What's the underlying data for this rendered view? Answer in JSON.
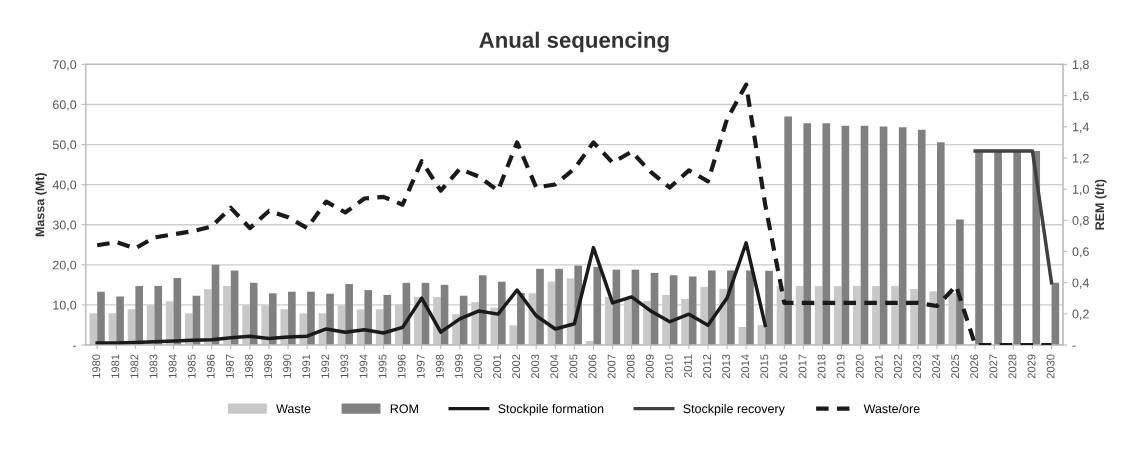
{
  "chart_data": {
    "type": "bar",
    "title": "Anual sequencing",
    "ylabel": "Massa (Mt)",
    "y2label": "REM (t/t)",
    "categories": [
      "1980",
      "1981",
      "1982",
      "1983",
      "1984",
      "1985",
      "1986",
      "1987",
      "1988",
      "1989",
      "1990",
      "1991",
      "1992",
      "1993",
      "1994",
      "1995",
      "1996",
      "1997",
      "1998",
      "1999",
      "2000",
      "2001",
      "2002",
      "2003",
      "2004",
      "2005",
      "2006",
      "2007",
      "2008",
      "2009",
      "2010",
      "2011",
      "2012",
      "2013",
      "2014",
      "2015",
      "2016",
      "2017",
      "2018",
      "2019",
      "2020",
      "2021",
      "2022",
      "2023",
      "2024",
      "2025",
      "2026",
      "2027",
      "2028",
      "2029",
      "2030"
    ],
    "series": [
      {
        "name": "Waste",
        "color": "#c8c8c8",
        "values": [
          7.9,
          7.9,
          8.9,
          9.9,
          10.9,
          7.9,
          13.9,
          14.7,
          9.9,
          9.9,
          8.9,
          7.9,
          7.9,
          9.9,
          8.9,
          8.9,
          10.1,
          12.0,
          12.0,
          7.7,
          10.7,
          9.3,
          4.9,
          12.9,
          15.8,
          16.6,
          1.0,
          12.0,
          11.5,
          11.0,
          12.5,
          11.5,
          14.5,
          14.0,
          4.5,
          5.0,
          14.7,
          14.7,
          14.7,
          14.7,
          14.7,
          14.7,
          14.7,
          14.0,
          13.4,
          13.0,
          null,
          null,
          null,
          null,
          null
        ]
      },
      {
        "name": "ROM",
        "color": "#808080",
        "values": [
          13.3,
          12.1,
          14.7,
          14.7,
          16.7,
          12.3,
          20.0,
          18.6,
          15.5,
          12.9,
          13.3,
          13.3,
          12.8,
          15.2,
          13.7,
          12.5,
          15.5,
          15.5,
          15.0,
          12.3,
          17.4,
          15.8,
          13.0,
          19.0,
          19.0,
          19.8,
          19.5,
          18.8,
          18.8,
          18.0,
          17.4,
          17.1,
          18.6,
          18.6,
          18.6,
          18.5,
          57.0,
          55.3,
          55.3,
          54.7,
          54.7,
          54.5,
          54.3,
          53.7,
          50.6,
          31.3,
          48.4,
          48.4,
          48.4,
          48.4,
          15.5
        ]
      },
      {
        "name": "Stockpile formation",
        "type": "line",
        "color": "#1a1a1a",
        "line_style": "solid",
        "values": [
          0.5,
          0.5,
          0.6,
          0.8,
          1.0,
          1.2,
          1.3,
          1.8,
          2.2,
          1.6,
          2.0,
          2.2,
          4.0,
          3.2,
          3.8,
          3.0,
          4.4,
          11.7,
          3.2,
          6.5,
          8.5,
          7.7,
          13.7,
          7.3,
          4.0,
          5.3,
          24.3,
          10.5,
          12.0,
          8.5,
          5.8,
          7.7,
          4.9,
          11.7,
          25.5,
          4.9,
          null,
          null,
          null,
          null,
          null,
          null,
          null,
          null,
          null,
          null,
          null,
          null,
          null,
          null,
          null
        ]
      },
      {
        "name": "Stockpile recovery",
        "type": "line",
        "color": "#404040",
        "line_style": "solid",
        "values": [
          null,
          null,
          null,
          null,
          null,
          null,
          null,
          null,
          null,
          null,
          null,
          null,
          null,
          null,
          null,
          null,
          null,
          null,
          null,
          null,
          null,
          null,
          null,
          null,
          null,
          null,
          null,
          null,
          null,
          null,
          null,
          null,
          null,
          null,
          null,
          null,
          null,
          null,
          null,
          null,
          null,
          null,
          null,
          null,
          null,
          null,
          48.4,
          48.4,
          48.4,
          48.4,
          15.5
        ]
      },
      {
        "name": "Waste/ore",
        "type": "line",
        "axis": "y2",
        "color": "#1a1a1a",
        "line_style": "dashed",
        "values": [
          0.64,
          0.66,
          0.62,
          0.69,
          0.71,
          0.73,
          0.76,
          0.88,
          0.75,
          0.86,
          0.82,
          0.75,
          0.92,
          0.85,
          0.94,
          0.95,
          0.9,
          1.18,
          0.99,
          1.13,
          1.08,
          0.99,
          1.3,
          1.01,
          1.03,
          1.13,
          1.3,
          1.17,
          1.24,
          1.11,
          1.01,
          1.12,
          1.05,
          1.45,
          1.67,
          0.9,
          0.27,
          0.27,
          0.27,
          0.27,
          0.27,
          0.27,
          0.27,
          0.27,
          0.25,
          0.38,
          0,
          0,
          0,
          0,
          0
        ]
      }
    ],
    "ylim": [
      0,
      70
    ],
    "yticks": [
      {
        "value": 0,
        "label": "-"
      },
      {
        "value": 10,
        "label": "10,0"
      },
      {
        "value": 20,
        "label": "20,0"
      },
      {
        "value": 30,
        "label": "30,0"
      },
      {
        "value": 40,
        "label": "40,0"
      },
      {
        "value": 50,
        "label": "50,0"
      },
      {
        "value": 60,
        "label": "60,0"
      },
      {
        "value": 70,
        "label": "70,0"
      }
    ],
    "y2lim": [
      0,
      1.8
    ],
    "y2ticks": [
      {
        "value": 0,
        "label": "-"
      },
      {
        "value": 0.2,
        "label": "0,2"
      },
      {
        "value": 0.4,
        "label": "0,4"
      },
      {
        "value": 0.6,
        "label": "0,6"
      },
      {
        "value": 0.8,
        "label": "0,8"
      },
      {
        "value": 1.0,
        "label": "1,0"
      },
      {
        "value": 1.2,
        "label": "1,2"
      },
      {
        "value": 1.4,
        "label": "1,4"
      },
      {
        "value": 1.6,
        "label": "1,6"
      },
      {
        "value": 1.8,
        "label": "1,8"
      }
    ],
    "grid": "y",
    "legend": "bottom"
  }
}
